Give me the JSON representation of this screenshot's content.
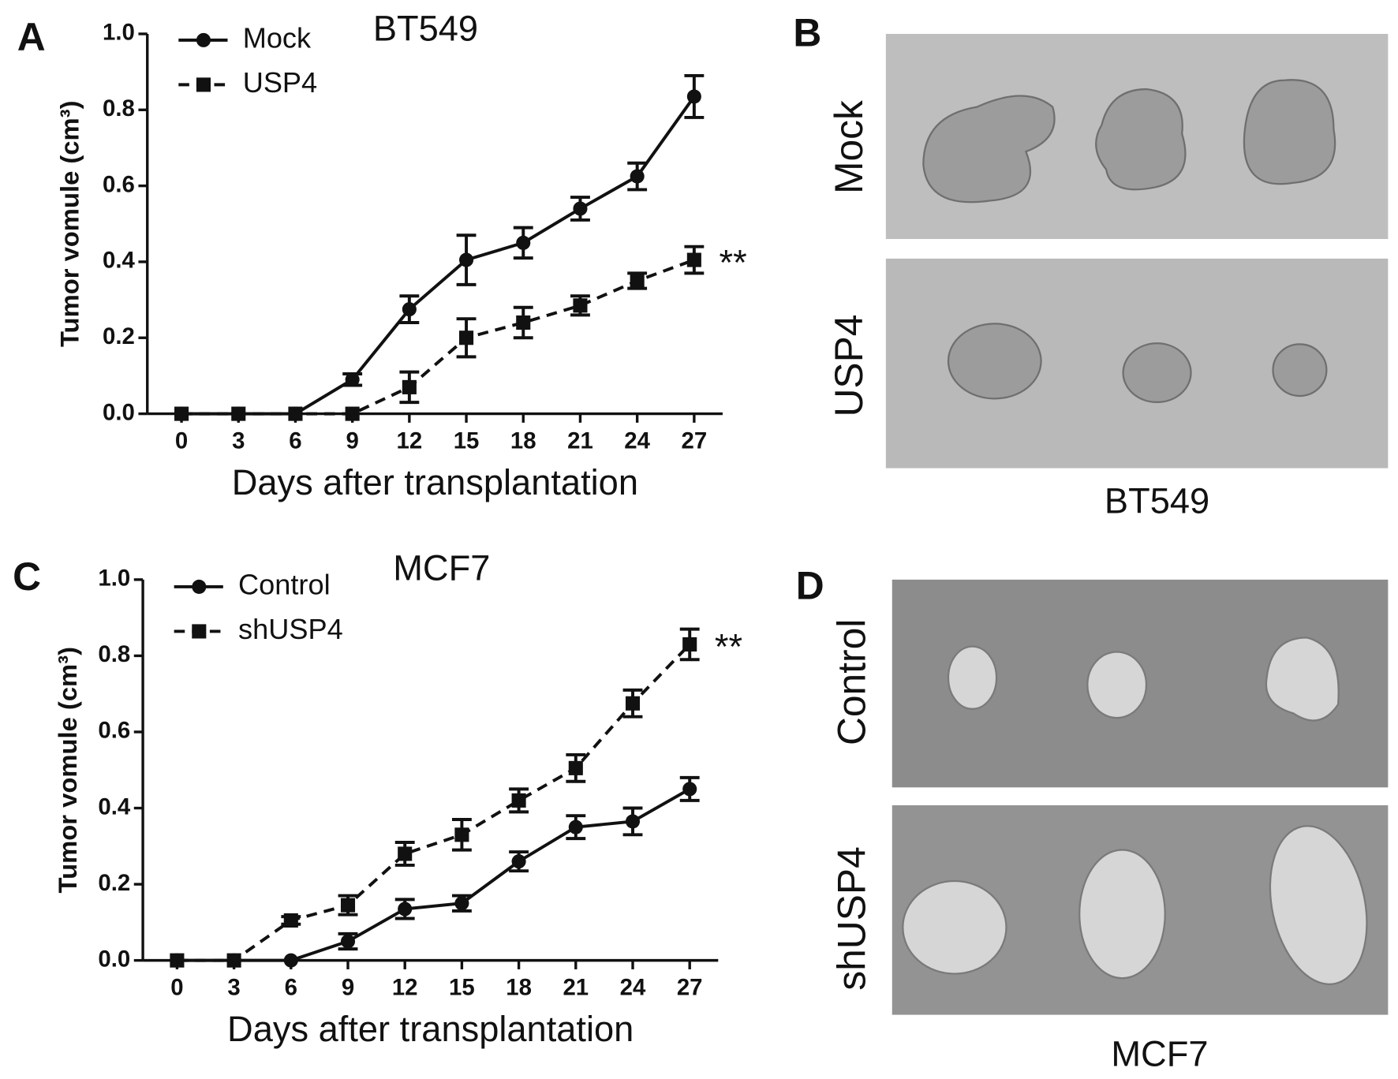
{
  "chart_data": [
    {
      "type": "line",
      "panel": "A",
      "title": "BT549",
      "xlabel": "Days after transplantation",
      "ylabel": "Tumor vomule (cm³)",
      "x": [
        0,
        3,
        6,
        9,
        12,
        15,
        18,
        21,
        24,
        27
      ],
      "xlim": [
        -1.8,
        28.5
      ],
      "xticks": [
        0,
        3,
        6,
        9,
        12,
        15,
        18,
        21,
        24,
        27
      ],
      "ylim": [
        0,
        1
      ],
      "yticks": [
        {
          "value": 0,
          "label": "0.0"
        },
        {
          "value": 0.2,
          "label": "0.2"
        },
        {
          "value": 0.4,
          "label": "0.4"
        },
        {
          "value": 0.6,
          "label": "0.6"
        },
        {
          "value": 0.8,
          "label": "0.8"
        },
        {
          "value": 1,
          "label": "1.0"
        }
      ],
      "legend": "upper left",
      "annotation": "**",
      "series": [
        {
          "name": "Mock",
          "color": "#111111",
          "line_style": "solid",
          "marker": "circle",
          "values": [
            0,
            0,
            0,
            0.09,
            0.275,
            0.405,
            0.45,
            0.54,
            0.625,
            0.835
          ],
          "errors": [
            0,
            0,
            0,
            0.015,
            0.035,
            0.065,
            0.04,
            0.03,
            0.035,
            0.055
          ]
        },
        {
          "name": "USP4",
          "color": "#111111",
          "line_style": "dashed",
          "marker": "square",
          "values": [
            0,
            0,
            0,
            0,
            0.07,
            0.2,
            0.24,
            0.285,
            0.35,
            0.405
          ],
          "errors": [
            0,
            0,
            0,
            0,
            0.04,
            0.05,
            0.04,
            0.025,
            0.02,
            0.035
          ]
        }
      ]
    },
    {
      "type": "line",
      "panel": "C",
      "title": "MCF7",
      "xlabel": "Days after transplantation",
      "ylabel": "Tumor vomule (cm³)",
      "x": [
        0,
        3,
        6,
        9,
        12,
        15,
        18,
        21,
        24,
        27
      ],
      "xlim": [
        -1.8,
        28.5
      ],
      "xticks": [
        0,
        3,
        6,
        9,
        12,
        15,
        18,
        21,
        24,
        27
      ],
      "ylim": [
        0,
        1
      ],
      "yticks": [
        {
          "value": 0,
          "label": "0.0"
        },
        {
          "value": 0.2,
          "label": "0.2"
        },
        {
          "value": 0.4,
          "label": "0.4"
        },
        {
          "value": 0.6,
          "label": "0.6"
        },
        {
          "value": 0.8,
          "label": "0.8"
        },
        {
          "value": 1,
          "label": "1.0"
        }
      ],
      "legend": "upper left",
      "annotation": "**",
      "series": [
        {
          "name": "Control",
          "color": "#111111",
          "line_style": "solid",
          "marker": "circle",
          "values": [
            0,
            0,
            0,
            0.05,
            0.135,
            0.15,
            0.26,
            0.35,
            0.365,
            0.45
          ],
          "errors": [
            0,
            0,
            0,
            0.02,
            0.025,
            0.02,
            0.025,
            0.03,
            0.035,
            0.03
          ]
        },
        {
          "name": "shUSP4",
          "color": "#111111",
          "line_style": "dashed",
          "marker": "square",
          "values": [
            0,
            0,
            0.105,
            0.145,
            0.28,
            0.33,
            0.42,
            0.505,
            0.675,
            0.83
          ],
          "errors": [
            0,
            0,
            0.01,
            0.025,
            0.03,
            0.04,
            0.03,
            0.035,
            0.035,
            0.04
          ]
        }
      ]
    }
  ],
  "photo_panels": [
    {
      "panel": "B",
      "rows": [
        "Mock",
        "USP4"
      ],
      "caption": "BT549"
    },
    {
      "panel": "D",
      "rows": [
        "Control",
        "shUSP4"
      ],
      "caption": "MCF7"
    }
  ]
}
